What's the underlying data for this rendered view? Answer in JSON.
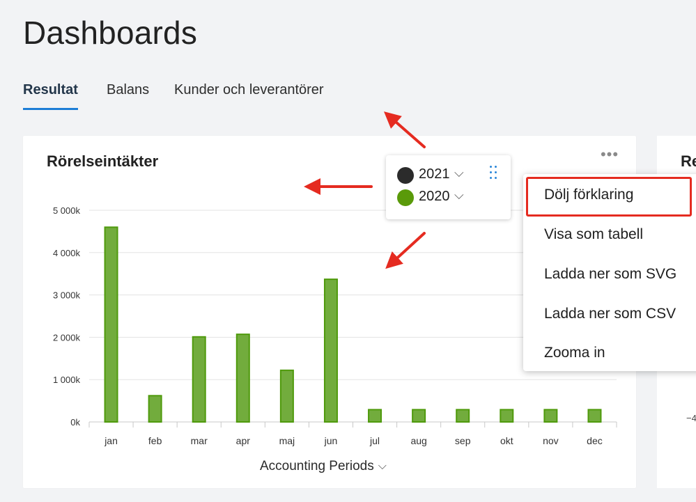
{
  "page": {
    "title": "Dashboards"
  },
  "tabs": [
    {
      "label": "Resultat",
      "active": true
    },
    {
      "label": "Balans",
      "active": false
    },
    {
      "label": "Kunder och leverantörer",
      "active": false
    }
  ],
  "card": {
    "title": "Rörelseintäkter",
    "more_icon": "more-horizontal-icon",
    "more_label": "•••",
    "x_axis_title": "Accounting Periods",
    "x_axis_chevron": "⌵"
  },
  "legend": {
    "items": [
      {
        "label": "2021",
        "color": "#2b2b2b",
        "chevron": "⌵"
      },
      {
        "label": "2020",
        "color": "#5a9a0a",
        "chevron": "⌵"
      }
    ],
    "drag_icon": "drag-handle-icon"
  },
  "menu": {
    "items": [
      {
        "label": "Dölj förklaring",
        "highlighted": true
      },
      {
        "label": "Visa som tabell"
      },
      {
        "label": "Ladda ner som SVG"
      },
      {
        "label": "Ladda ner som CSV"
      },
      {
        "label": "Zooma in"
      }
    ]
  },
  "second_card": {
    "title": "Re",
    "tick": "−4"
  },
  "colors": {
    "accent": "#1d7ed6",
    "bar_fill": "#72ac3d",
    "bar_stroke": "#4f9a0c",
    "annotation": "#e52b20"
  },
  "chart_data": {
    "type": "bar",
    "title": "Rörelseintäkter",
    "xlabel": "Accounting Periods",
    "ylabel": "",
    "categories": [
      "jan",
      "feb",
      "mar",
      "apr",
      "maj",
      "jun",
      "jul",
      "aug",
      "sep",
      "okt",
      "nov",
      "dec"
    ],
    "series": [
      {
        "name": "2020",
        "values": [
          4600,
          620,
          2010,
          2070,
          1220,
          3370,
          290,
          290,
          290,
          290,
          290,
          290
        ]
      }
    ],
    "ylim": [
      0,
      5000
    ],
    "yticks": [
      0,
      1000,
      2000,
      3000,
      4000,
      5000
    ],
    "ytick_labels": [
      "0k",
      "1 000k",
      "2 000k",
      "3 000k",
      "4 000k",
      "5 000k"
    ],
    "grid": true,
    "legend_position": "top-right"
  }
}
